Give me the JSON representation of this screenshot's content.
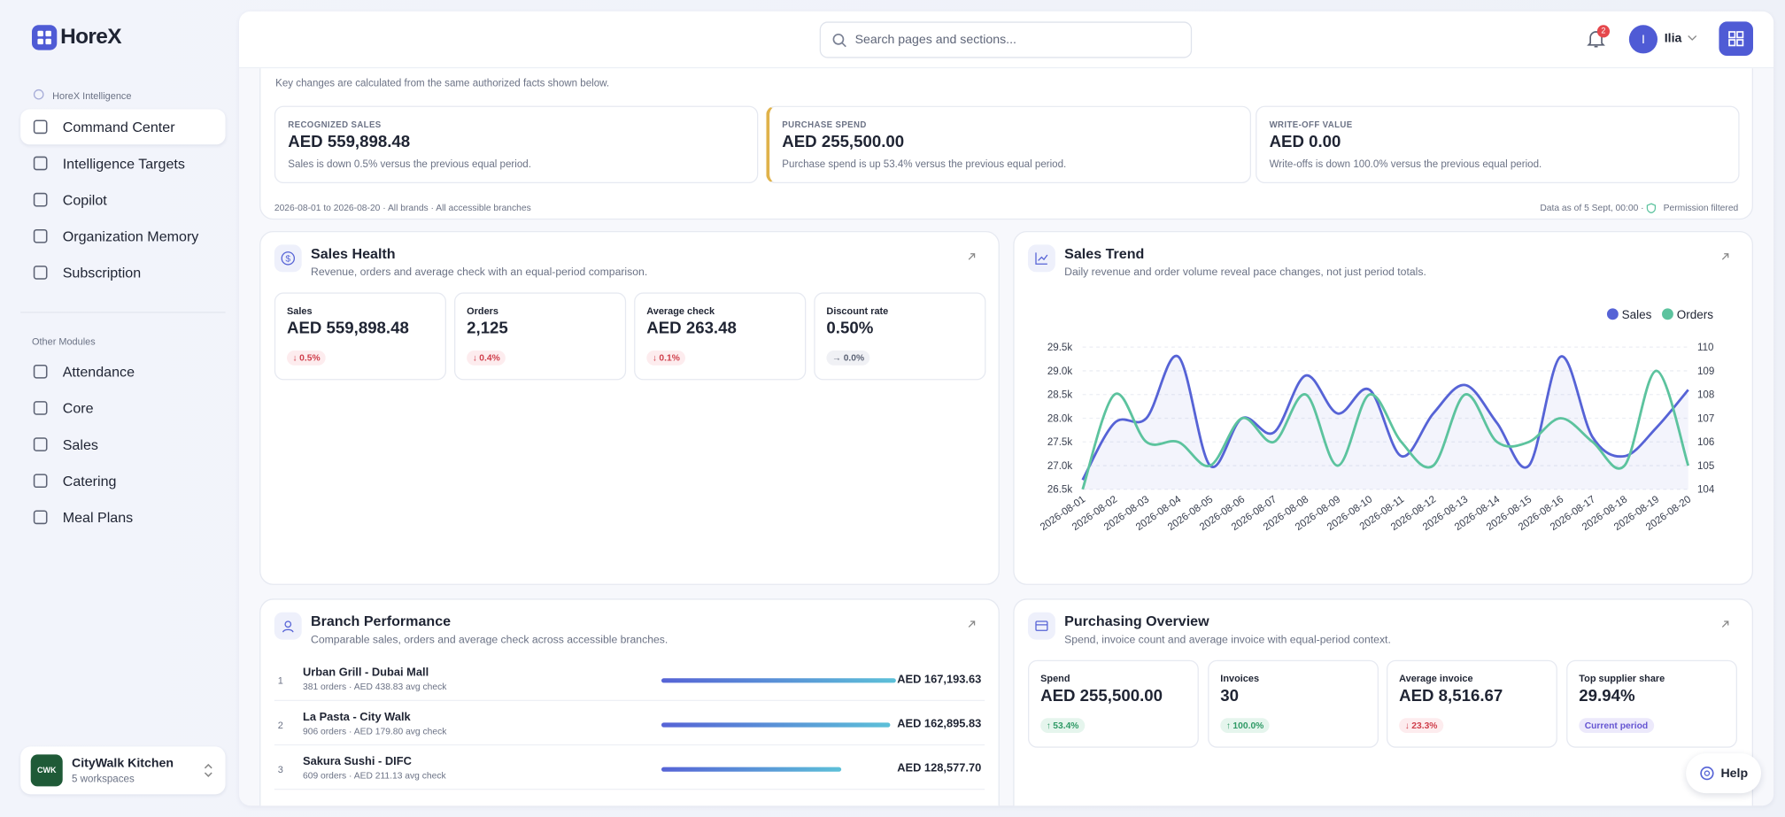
{
  "sidebar": {
    "brand": "HoreX",
    "section_primary": "HoreX Intelligence",
    "primary_items": [
      "Command Center",
      "Intelligence Targets",
      "Copilot",
      "Organization Memory",
      "Subscription"
    ],
    "section_other": "Other Modules",
    "other_items": [
      "Attendance",
      "Core",
      "Sales",
      "Catering",
      "Meal Plans"
    ],
    "workspace": {
      "logo": "CWK",
      "name": "CityWalk Kitchen",
      "detail": "5 workspaces"
    }
  },
  "topbar": {
    "search_placeholder": "Search pages and sections...",
    "notifications": "2",
    "user_initial": "I",
    "user_name": "Ilia"
  },
  "summary": {
    "intro": "Key changes are calculated from the same authorized facts shown below.",
    "kpis": [
      {
        "label": "RECOGNIZED SALES",
        "value": "AED 559,898.48",
        "note": "Sales is down 0.5% versus the previous equal period."
      },
      {
        "label": "PURCHASE SPEND",
        "value": "AED 255,500.00",
        "note": "Purchase spend is up 53.4% versus the previous equal period."
      },
      {
        "label": "WRITE-OFF VALUE",
        "value": "AED 0.00",
        "note": "Write-offs is down 100.0% versus the previous equal period."
      }
    ],
    "scope": "2026-08-01 to 2026-08-20 · All brands · All accessible branches",
    "data_as_of": "Data as of 5 Sept, 00:00 ·",
    "permission": "Permission filtered"
  },
  "sales_health": {
    "title": "Sales Health",
    "subtitle": "Revenue, orders and average check with an equal-period comparison.",
    "metrics": [
      {
        "label": "Sales",
        "value": "AED 559,898.48",
        "change": "0.5%",
        "direction": "down"
      },
      {
        "label": "Orders",
        "value": "2,125",
        "change": "0.4%",
        "direction": "down"
      },
      {
        "label": "Average check",
        "value": "AED 263.48",
        "change": "0.1%",
        "direction": "down"
      },
      {
        "label": "Discount rate",
        "value": "0.50%",
        "change": "0.0%",
        "direction": "flat"
      }
    ]
  },
  "chart_data": {
    "type": "line",
    "title": "Sales Trend",
    "subtitle": "Daily revenue and order volume reveal pace changes, not just period totals.",
    "x": [
      "2026-08-01",
      "2026-08-02",
      "2026-08-03",
      "2026-08-04",
      "2026-08-05",
      "2026-08-06",
      "2026-08-07",
      "2026-08-08",
      "2026-08-09",
      "2026-08-10",
      "2026-08-11",
      "2026-08-12",
      "2026-08-13",
      "2026-08-14",
      "2026-08-15",
      "2026-08-16",
      "2026-08-17",
      "2026-08-18",
      "2026-08-19",
      "2026-08-20"
    ],
    "series": [
      {
        "name": "Sales",
        "color": "#5663d6",
        "values": [
          26700,
          27900,
          28000,
          29300,
          27000,
          28000,
          27700,
          28900,
          28100,
          28600,
          27200,
          28100,
          28700,
          27900,
          27000,
          29300,
          27600,
          27200,
          27800,
          28600
        ]
      },
      {
        "name": "Orders",
        "color": "#5cc39e",
        "axis": "y2",
        "values": [
          104,
          108,
          106,
          106,
          105,
          107,
          106,
          108,
          105,
          108,
          106,
          105,
          108,
          106,
          106,
          107,
          106,
          105,
          109,
          105
        ]
      }
    ],
    "ylim": [
      26500,
      29500
    ],
    "yticks": [
      {
        "value": 26500,
        "label": "26.5k"
      },
      {
        "value": 27000,
        "label": "27.0k"
      },
      {
        "value": 27500,
        "label": "27.5k"
      },
      {
        "value": 28000,
        "label": "28.0k"
      },
      {
        "value": 28500,
        "label": "28.5k"
      },
      {
        "value": 29000,
        "label": "29.0k"
      },
      {
        "value": 29500,
        "label": "29.5k"
      }
    ],
    "y2lim": [
      104,
      110
    ],
    "y2ticks": [
      104,
      105,
      106,
      107,
      108,
      109,
      110
    ],
    "grid": true,
    "legend": "top-right"
  },
  "branch_performance": {
    "title": "Branch Performance",
    "subtitle": "Comparable sales, orders and average check across accessible branches.",
    "rows": [
      {
        "rank": "1",
        "name": "Urban Grill - Dubai Mall",
        "detail": "381 orders · AED 438.83 avg check",
        "value": 167193.63,
        "label": "AED 167,193.63"
      },
      {
        "rank": "2",
        "name": "La Pasta - City Walk",
        "detail": "906 orders · AED 179.80 avg check",
        "value": 162895.83,
        "label": "AED 162,895.83"
      },
      {
        "rank": "3",
        "name": "Sakura Sushi - DIFC",
        "detail": "609 orders · AED 211.13 avg check",
        "value": 128577.7,
        "label": "AED 128,577.70"
      }
    ],
    "color_start": "#5663d6",
    "color_end": "#5cc0d8"
  },
  "purchasing": {
    "title": "Purchasing Overview",
    "subtitle": "Spend, invoice count and average invoice with equal-period context.",
    "metrics": [
      {
        "label": "Spend",
        "value": "AED 255,500.00",
        "change": "53.4%",
        "direction": "up"
      },
      {
        "label": "Invoices",
        "value": "30",
        "change": "100.0%",
        "direction": "up"
      },
      {
        "label": "Average invoice",
        "value": "AED 8,516.67",
        "change": "23.3%",
        "direction": "down"
      },
      {
        "label": "Top supplier share",
        "value": "29.94%",
        "change": "Current period",
        "direction": "period"
      }
    ]
  },
  "help": "Help"
}
